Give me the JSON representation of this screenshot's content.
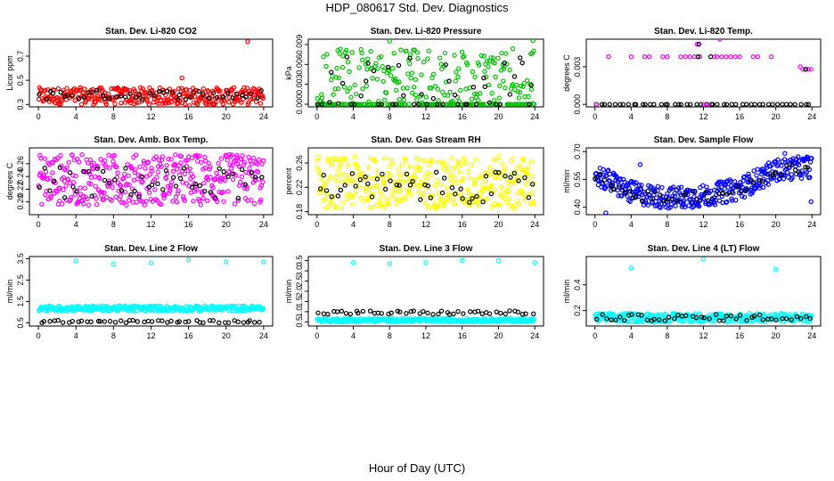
{
  "page": {
    "title": "HDP_080617  Std. Dev. Diagnostics",
    "x_caption": "Hour of Day (UTC)"
  },
  "colors": {
    "red": "#ff0000",
    "green": "#00c000",
    "magenta": "#ff00ff",
    "yellow": "#ffff00",
    "blue": "#0000ff",
    "cyan": "#00ffff",
    "black": "#000000"
  },
  "chart_data": [
    {
      "id": "co2",
      "type": "scatter",
      "title": "Stan. Dev. Li-820 CO2",
      "ylabel": "Licor ppm",
      "xlim": [
        0,
        24
      ],
      "ylim": [
        0.28,
        0.84
      ],
      "xticks": [
        "0",
        "4",
        "8",
        "12",
        "16",
        "20",
        "24"
      ],
      "yticks": [
        "0.3",
        "0.5",
        "0.7"
      ],
      "series": [
        {
          "name": "all",
          "color": "red",
          "band": [
            0.3,
            0.44
          ],
          "count": 320,
          "outliers": [
            {
              "x": 22.3,
              "y": 0.82
            },
            {
              "x": 16.1,
              "y": 0.29
            },
            {
              "x": 15.3,
              "y": 0.52
            }
          ]
        },
        {
          "name": "hourly",
          "color": "black",
          "band": [
            0.34,
            0.42
          ],
          "count": 48
        }
      ]
    },
    {
      "id": "pressure",
      "type": "scatter",
      "title": "Stan. Dev. Li-820 Pressure",
      "ylabel": "kPa",
      "xlim": [
        0,
        24
      ],
      "ylim": [
        -0.0004,
        0.0098
      ],
      "xticks": [
        "0",
        "4",
        "8",
        "12",
        "16",
        "20",
        "24"
      ],
      "yticks": [
        "0.000",
        "0.003",
        "0.006",
        "0.009"
      ],
      "series": [
        {
          "name": "all",
          "color": "green",
          "band": [
            0.0,
            0.0085
          ],
          "count": 320,
          "zero_fraction": 0.35,
          "outliers": [
            {
              "x": 8.0,
              "y": 0.0095
            },
            {
              "x": 23.8,
              "y": 0.0096
            }
          ]
        },
        {
          "name": "hourly",
          "color": "black",
          "band": [
            0.0,
            0.0075
          ],
          "count": 48,
          "zero_fraction": 0.4
        }
      ]
    },
    {
      "id": "temp",
      "type": "scatter",
      "title": "Stan. Dev. Li-820 Temp.",
      "ylabel": "degrees C",
      "xlim": [
        0,
        24
      ],
      "ylim": [
        -0.0002,
        0.0052
      ],
      "xticks": [
        "0",
        "4",
        "8",
        "12",
        "16",
        "20",
        "24"
      ],
      "yticks": [
        "0.000",
        "0.003"
      ],
      "series": [
        {
          "name": "baseline",
          "color": "black",
          "band": [
            0.0,
            0.0
          ],
          "count": 48
        },
        {
          "name": "all",
          "color": "magenta",
          "points": [
            {
              "x": 0.2,
              "y": 0
            },
            {
              "x": 1.5,
              "y": 0.0038
            },
            {
              "x": 4.0,
              "y": 0.0038
            },
            {
              "x": 5.5,
              "y": 0.0038
            },
            {
              "x": 6.0,
              "y": 0.0038
            },
            {
              "x": 7.5,
              "y": 0.0038
            },
            {
              "x": 8.0,
              "y": 0.0038
            },
            {
              "x": 9.5,
              "y": 0.0038
            },
            {
              "x": 10.0,
              "y": 0.0038
            },
            {
              "x": 10.5,
              "y": 0.0038
            },
            {
              "x": 11.0,
              "y": 0.0038
            },
            {
              "x": 11.3,
              "y": 0.0048
            },
            {
              "x": 11.6,
              "y": 0.0038
            },
            {
              "x": 12.0,
              "y": 0.0
            },
            {
              "x": 13.2,
              "y": 0.0038
            },
            {
              "x": 13.5,
              "y": 0.0038
            },
            {
              "x": 13.8,
              "y": 0.0052
            },
            {
              "x": 14.0,
              "y": 0.0038
            },
            {
              "x": 14.5,
              "y": 0.0038
            },
            {
              "x": 15.0,
              "y": 0.0038
            },
            {
              "x": 15.5,
              "y": 0.0038
            },
            {
              "x": 16.0,
              "y": 0.0038
            },
            {
              "x": 17.5,
              "y": 0.0038
            },
            {
              "x": 18.0,
              "y": 0.0038
            },
            {
              "x": 19.5,
              "y": 0.0038
            },
            {
              "x": 22.7,
              "y": 0.003
            },
            {
              "x": 23.0,
              "y": 0.0028
            },
            {
              "x": 23.3,
              "y": 0.0028
            },
            {
              "x": 23.6,
              "y": 0.0028
            },
            {
              "x": 23.9,
              "y": 0.0028
            },
            {
              "x": 12.5,
              "y": 0.0
            }
          ]
        },
        {
          "name": "hourly",
          "color": "black",
          "points": [
            {
              "x": 11.5,
              "y": 0.0048
            },
            {
              "x": 11.4,
              "y": 0.0038
            },
            {
              "x": 12.8,
              "y": 0.0038
            },
            {
              "x": 23.3,
              "y": 0.0028
            }
          ]
        }
      ]
    },
    {
      "id": "boxtemp",
      "type": "scatter",
      "title": "Stan. Dev. Amb. Box Temp.",
      "ylabel": "degrees C",
      "xlim": [
        0,
        24
      ],
      "ylim": [
        0.18,
        0.285
      ],
      "xticks": [
        "0",
        "4",
        "8",
        "12",
        "16",
        "20",
        "24"
      ],
      "yticks": [
        "0.20",
        "0.22",
        "0.24",
        "0.26"
      ],
      "series": [
        {
          "name": "all",
          "color": "magenta",
          "band": [
            0.195,
            0.275
          ],
          "count": 380
        },
        {
          "name": "hourly",
          "color": "black",
          "band": [
            0.205,
            0.255
          ],
          "count": 48
        }
      ]
    },
    {
      "id": "rh",
      "type": "scatter",
      "title": "Stan. Dev. Gas Stream RH",
      "ylabel": "percent",
      "xlim": [
        0,
        24
      ],
      "ylim": [
        0.175,
        0.285
      ],
      "xticks": [
        "0",
        "4",
        "8",
        "12",
        "16",
        "20",
        "24"
      ],
      "yticks": [
        "0.18",
        "0.22",
        "0.26"
      ],
      "series": [
        {
          "name": "all",
          "color": "yellow",
          "band": [
            0.185,
            0.27
          ],
          "count": 360
        },
        {
          "name": "hourly",
          "color": "black",
          "band": [
            0.195,
            0.245
          ],
          "count": 48
        }
      ]
    },
    {
      "id": "sampleflow",
      "type": "scatter",
      "title": "Stan. Dev. Sample Flow",
      "ylabel": "ml/min",
      "xlim": [
        0,
        24
      ],
      "ylim": [
        0.36,
        0.72
      ],
      "xticks": [
        "0",
        "4",
        "8",
        "12",
        "16",
        "20",
        "24"
      ],
      "yticks": [
        "0.40",
        "0.55",
        "0.70"
      ],
      "series": [
        {
          "name": "all",
          "color": "blue",
          "curve": [
            [
              0,
              0.58
            ],
            [
              4,
              0.48
            ],
            [
              8,
              0.45
            ],
            [
              12,
              0.46
            ],
            [
              16,
              0.5
            ],
            [
              20,
              0.6
            ],
            [
              24,
              0.62
            ]
          ],
          "spread": 0.06,
          "count": 380,
          "outliers": [
            {
              "x": 1.2,
              "y": 0.37
            },
            {
              "x": 5.0,
              "y": 0.63
            },
            {
              "x": 21.0,
              "y": 0.69
            },
            {
              "x": 23.9,
              "y": 0.43
            }
          ]
        },
        {
          "name": "hourly",
          "color": "black",
          "curve": [
            [
              0,
              0.56
            ],
            [
              4,
              0.47
            ],
            [
              8,
              0.45
            ],
            [
              12,
              0.46
            ],
            [
              16,
              0.49
            ],
            [
              20,
              0.6
            ],
            [
              24,
              0.62
            ]
          ],
          "spread": 0.03,
          "count": 48
        }
      ]
    },
    {
      "id": "line2",
      "type": "scatter",
      "title": "Stan. Dev. Line 2 Flow",
      "ylabel": "ml/min",
      "xlim": [
        0,
        24
      ],
      "ylim": [
        0.35,
        3.6
      ],
      "xticks": [
        "0",
        "4",
        "8",
        "12",
        "16",
        "20",
        "24"
      ],
      "yticks": [
        "0.5",
        "1.5",
        "2.5",
        "3.5"
      ],
      "series": [
        {
          "name": "all",
          "color": "cyan",
          "band": [
            1.05,
            1.3
          ],
          "count": 320,
          "outliers": [
            {
              "x": 4,
              "y": 3.4
            },
            {
              "x": 8,
              "y": 3.25
            },
            {
              "x": 12,
              "y": 3.3
            },
            {
              "x": 16,
              "y": 3.45
            },
            {
              "x": 20,
              "y": 3.35
            },
            {
              "x": 24,
              "y": 3.35
            }
          ]
        },
        {
          "name": "hourly",
          "color": "black",
          "band": [
            0.5,
            0.62
          ],
          "count": 48
        }
      ]
    },
    {
      "id": "line3",
      "type": "scatter",
      "title": "Stan. Dev. Line 3 Flow",
      "ylabel": "ml/min",
      "xlim": [
        0,
        24
      ],
      "ylim": [
        0.3,
        3.7
      ],
      "xticks": [
        "0",
        "4",
        "8",
        "12",
        "16",
        "20",
        "24"
      ],
      "yticks": [
        "0.5",
        "1.0",
        "1.5",
        "2.0",
        "2.5",
        "3.0",
        "3.5"
      ],
      "series": [
        {
          "name": "all",
          "color": "cyan",
          "band": [
            0.5,
            0.68
          ],
          "count": 320,
          "outliers": [
            {
              "x": 4,
              "y": 3.4
            },
            {
              "x": 8,
              "y": 3.35
            },
            {
              "x": 12,
              "y": 3.4
            },
            {
              "x": 16,
              "y": 3.5
            },
            {
              "x": 20,
              "y": 3.5
            },
            {
              "x": 24,
              "y": 3.4
            }
          ]
        },
        {
          "name": "hourly",
          "color": "black",
          "band": [
            0.85,
            1.05
          ],
          "count": 48
        }
      ]
    },
    {
      "id": "line4",
      "type": "scatter",
      "title": "Stan. Dev. Line 4 (LT) Flow",
      "ylabel": "ml/min",
      "xlim": [
        0,
        24
      ],
      "ylim": [
        0.08,
        0.62
      ],
      "xticks": [
        "0",
        "4",
        "8",
        "12",
        "16",
        "20",
        "24"
      ],
      "yticks": [
        "0.2",
        "0.4"
      ],
      "series": [
        {
          "name": "all",
          "color": "cyan",
          "band": [
            0.11,
            0.18
          ],
          "count": 320,
          "outliers": [
            {
              "x": 4,
              "y": 0.53
            },
            {
              "x": 12,
              "y": 0.6
            },
            {
              "x": 20,
              "y": 0.52
            }
          ]
        },
        {
          "name": "hourly",
          "color": "black",
          "band": [
            0.12,
            0.17
          ],
          "count": 48
        }
      ]
    }
  ]
}
